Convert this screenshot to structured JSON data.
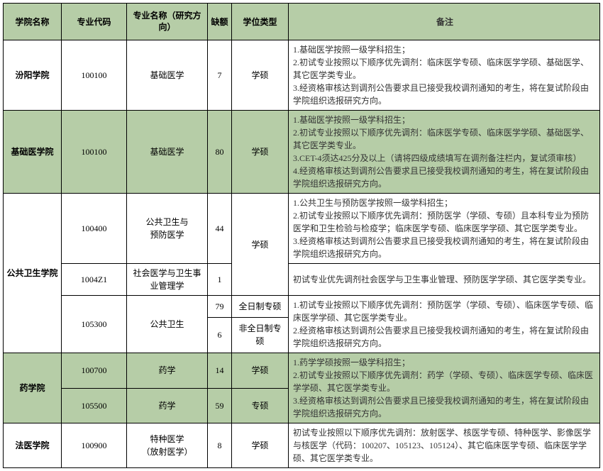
{
  "headers": {
    "school": "学院名称",
    "code": "专业代码",
    "major": "专业名称（研究方向）",
    "quota": "缺额",
    "degree": "学位类型",
    "notes": "备注"
  },
  "rows": [
    {
      "bg": "plain",
      "school": "汾阳学院",
      "school_rs": 1,
      "code": "100100",
      "code_rs": 1,
      "major": "基础医学",
      "major_rs": 1,
      "quota": "7",
      "quota_rs": 1,
      "degree": "学硕",
      "degree_rs": 1,
      "notes": "1.基础医学按照一级学科招生；\n2.初试专业按照以下顺序优先调剂：临床医学专硕、临床医学学硕、基础医学、其它医学类专业。\n3.经资格审核达到调剂公告要求且已接受我校调剂通知的考生，将在复试阶段由学院组织选报研究方向。",
      "notes_rs": 1
    },
    {
      "bg": "green",
      "school": "基础医学院",
      "school_rs": 1,
      "code": "100100",
      "code_rs": 1,
      "major": "基础医学",
      "major_rs": 1,
      "quota": "80",
      "quota_rs": 1,
      "degree": "学硕",
      "degree_rs": 1,
      "notes": "1.基础医学按照一级学科招生；\n2.初试专业按照以下顺序优先调剂：临床医学专硕、临床医学学硕、基础医学、其它医学类专业。\n3.CET-4须达425分及以上（请将四级成绩填写在调剂备注栏内，复试须审核）\n4.经资格审核达到调剂公告要求且已接受我校调剂通知的考生，将在复试阶段由学院组织选报研究方向。",
      "notes_rs": 1
    },
    {
      "bg": "plain",
      "school": "公共卫生学院",
      "school_rs": 4,
      "code": "100400",
      "code_rs": 1,
      "major": "公共卫生与\n预防医学",
      "major_rs": 1,
      "quota": "44",
      "quota_rs": 1,
      "degree": "学硕",
      "degree_rs": 2,
      "notes": "1.公共卫生与预防医学按照一级学科招生；\n2.初试专业按照以下顺序优先调剂：预防医学（学硕、专硕）且本科专业为预防医学和卫生检验与检疫学；临床医学专硕、临床医学学硕、其它医学类专业。\n3.经资格审核达到调剂公告要求且已接受我校调剂通知的考生，将在复试阶段由学院组织选报研究方向。",
      "notes_rs": 1
    },
    {
      "bg": "plain",
      "code": "1004Z1",
      "code_rs": 1,
      "major": "社会医学与卫生事业管理学",
      "major_rs": 1,
      "quota": "1",
      "quota_rs": 1,
      "notes": "初试专业优先调剂社会医学与卫生事业管理、预防医学学硕、其它医学类专业。",
      "notes_rs": 1
    },
    {
      "bg": "plain",
      "code": "105300",
      "code_rs": 2,
      "major": "公共卫生",
      "major_rs": 2,
      "quota": "79",
      "quota_rs": 1,
      "degree": "全日制专硕",
      "degree_rs": 1,
      "notes": "1.初试专业按照以下顺序优先调剂：预防医学（学硕、专硕）、临床医学专硕、临床医学学硕、其它医学类专业。\n2.经资格审核达到调剂公告要求且已接受我校调剂通知的考生，将在复试阶段由学院组织选报研究方向。",
      "notes_rs": 2
    },
    {
      "bg": "plain",
      "quota": "6",
      "quota_rs": 1,
      "degree": "非全日制专硕",
      "degree_rs": 1
    },
    {
      "bg": "green",
      "school": "药学院",
      "school_rs": 2,
      "code": "100700",
      "code_rs": 1,
      "major": "药学",
      "major_rs": 1,
      "quota": "14",
      "quota_rs": 1,
      "degree": "学硕",
      "degree_rs": 1,
      "notes": "1.药学学硕按照一级学科招生；\n2.初试专业按照以下顺序优先调剂：药学（学硕、专硕）、临床医学专硕、临床医学学硕、其它医学类专业。\n3.经资格审核达到调剂公告要求且已接受我校调剂通知的考生，将在复试阶段由学院组织选报研究方向。",
      "notes_rs": 2
    },
    {
      "bg": "green",
      "code": "105500",
      "code_rs": 1,
      "major": "药学",
      "major_rs": 1,
      "quota": "59",
      "quota_rs": 1,
      "degree": "专硕",
      "degree_rs": 1
    },
    {
      "bg": "plain",
      "school": "法医学院",
      "school_rs": 1,
      "code": "100900",
      "code_rs": 1,
      "major": "特种医学\n（放射医学）",
      "major_rs": 1,
      "quota": "8",
      "quota_rs": 1,
      "degree": "学硕",
      "degree_rs": 1,
      "notes": "初试专业按照以下顺序优先调剂：放射医学、核医学专硕、特种医学、影像医学与核医学（代码：100207、105123、105124）、其它临床医学专硕、临床医学学硕、其它医学类专业。",
      "notes_rs": 1
    }
  ]
}
